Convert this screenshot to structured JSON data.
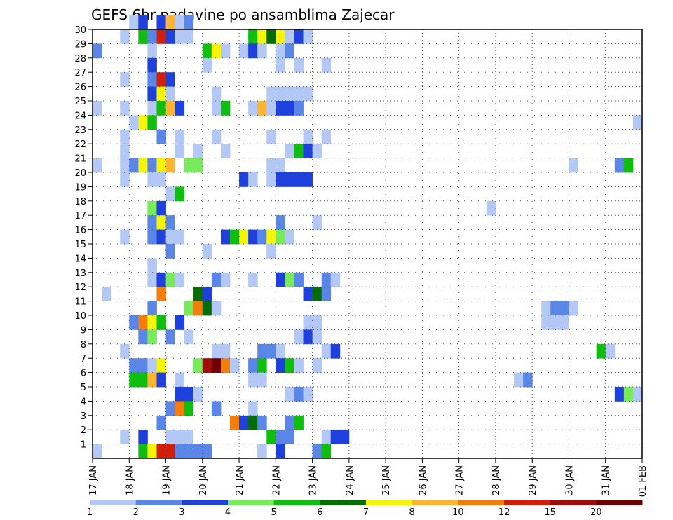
{
  "chart_data": {
    "type": "heatmap",
    "title": "GEFS 6hr padavine po ansamblima Zajecar",
    "x_tick_labels": [
      "17 JAN",
      "18 JAN",
      "19 JAN",
      "20 JAN",
      "21 JAN",
      "22 JAN",
      "23 JAN",
      "24 JAN",
      "25 JAN",
      "26 JAN",
      "27 JAN",
      "28 JAN",
      "29 JAN",
      "30 JAN",
      "31 JAN",
      "01 FEB"
    ],
    "xlim": [
      0,
      60
    ],
    "y_tick_labels": [
      "1",
      "2",
      "3",
      "4",
      "5",
      "6",
      "7",
      "8",
      "9",
      "10",
      "11",
      "12",
      "13",
      "14",
      "15",
      "16",
      "17",
      "18",
      "19",
      "20",
      "21",
      "22",
      "23",
      "24",
      "25",
      "26",
      "27",
      "28",
      "29",
      "30"
    ],
    "ylim": [
      0,
      30
    ],
    "grid": true,
    "colorbar": {
      "labels": [
        "1",
        "2",
        "3",
        "4",
        "5",
        "6",
        "7",
        "8",
        "10",
        "12",
        "15",
        "20"
      ],
      "colors": [
        "#b4c8f5",
        "#5a86e8",
        "#1e40dc",
        "#78eb5a",
        "#0fbe0f",
        "#076e07",
        "#f5f50a",
        "#ffb432",
        "#f57d0a",
        "#d21e0a",
        "#a50a0a",
        "#6e0000"
      ]
    },
    "cells": [
      [
        30,
        4,
        1
      ],
      [
        30,
        5,
        3
      ],
      [
        30,
        7,
        3
      ],
      [
        30,
        8,
        8
      ],
      [
        30,
        9,
        1
      ],
      [
        30,
        10,
        2
      ],
      [
        29,
        3,
        1
      ],
      [
        29,
        5,
        5
      ],
      [
        29,
        6,
        2
      ],
      [
        29,
        7,
        12
      ],
      [
        29,
        8,
        3
      ],
      [
        29,
        9,
        1
      ],
      [
        29,
        10,
        1
      ],
      [
        29,
        17,
        5
      ],
      [
        29,
        18,
        7
      ],
      [
        29,
        19,
        6
      ],
      [
        29,
        20,
        7
      ],
      [
        29,
        21,
        9
      ],
      [
        29,
        22,
        3
      ],
      [
        29,
        23,
        1
      ],
      [
        28,
        0,
        2
      ],
      [
        28,
        6,
        1
      ],
      [
        28,
        12,
        5
      ],
      [
        28,
        13,
        7
      ],
      [
        28,
        14,
        1
      ],
      [
        28,
        16,
        1
      ],
      [
        28,
        17,
        3
      ],
      [
        28,
        18,
        1
      ],
      [
        28,
        20,
        1
      ],
      [
        28,
        21,
        2
      ],
      [
        27,
        6,
        3
      ],
      [
        27,
        12,
        1
      ],
      [
        27,
        20,
        1
      ],
      [
        27,
        22,
        1
      ],
      [
        27,
        25,
        1
      ],
      [
        26,
        3,
        1
      ],
      [
        26,
        6,
        2
      ],
      [
        26,
        7,
        12
      ],
      [
        26,
        8,
        3
      ],
      [
        25,
        6,
        3
      ],
      [
        25,
        7,
        7
      ],
      [
        25,
        8,
        1
      ],
      [
        25,
        13,
        1
      ],
      [
        25,
        19,
        1
      ],
      [
        25,
        20,
        1
      ],
      [
        25,
        21,
        1
      ],
      [
        25,
        22,
        1
      ],
      [
        25,
        23,
        1
      ],
      [
        24,
        0,
        1
      ],
      [
        24,
        3,
        1
      ],
      [
        24,
        6,
        1
      ],
      [
        24,
        7,
        5
      ],
      [
        24,
        8,
        8
      ],
      [
        24,
        9,
        3
      ],
      [
        24,
        13,
        1
      ],
      [
        24,
        14,
        5
      ],
      [
        24,
        17,
        1
      ],
      [
        24,
        18,
        8
      ],
      [
        24,
        19,
        1
      ],
      [
        24,
        20,
        3
      ],
      [
        24,
        21,
        3
      ],
      [
        24,
        22,
        2
      ],
      [
        23,
        4,
        1
      ],
      [
        23,
        5,
        7
      ],
      [
        23,
        6,
        5
      ],
      [
        23,
        59,
        1
      ],
      [
        22,
        3,
        1
      ],
      [
        22,
        7,
        2
      ],
      [
        22,
        9,
        1
      ],
      [
        22,
        13,
        1
      ],
      [
        22,
        19,
        1
      ],
      [
        22,
        23,
        1
      ],
      [
        22,
        25,
        1
      ],
      [
        21,
        3,
        1
      ],
      [
        21,
        9,
        1
      ],
      [
        21,
        11,
        1
      ],
      [
        21,
        14,
        1
      ],
      [
        21,
        21,
        1
      ],
      [
        21,
        22,
        5
      ],
      [
        21,
        23,
        3
      ],
      [
        21,
        24,
        1
      ],
      [
        20,
        0,
        1
      ],
      [
        20,
        3,
        1
      ],
      [
        20,
        4,
        2
      ],
      [
        20,
        5,
        7
      ],
      [
        20,
        6,
        2
      ],
      [
        20,
        7,
        7
      ],
      [
        20,
        8,
        8
      ],
      [
        20,
        10,
        4
      ],
      [
        20,
        11,
        4
      ],
      [
        20,
        19,
        1
      ],
      [
        20,
        20,
        1
      ],
      [
        20,
        52,
        1
      ],
      [
        20,
        57,
        2
      ],
      [
        20,
        58,
        5
      ],
      [
        19,
        3,
        1
      ],
      [
        19,
        6,
        1
      ],
      [
        19,
        7,
        1
      ],
      [
        19,
        16,
        3
      ],
      [
        19,
        17,
        1
      ],
      [
        19,
        19,
        1
      ],
      [
        19,
        20,
        3
      ],
      [
        19,
        21,
        3
      ],
      [
        19,
        22,
        3
      ],
      [
        19,
        23,
        3
      ],
      [
        18,
        8,
        1
      ],
      [
        18,
        9,
        5
      ],
      [
        17,
        6,
        4
      ],
      [
        17,
        7,
        3
      ],
      [
        17,
        43,
        1
      ],
      [
        16,
        6,
        2
      ],
      [
        16,
        7,
        7
      ],
      [
        16,
        8,
        2
      ],
      [
        16,
        20,
        2
      ],
      [
        16,
        24,
        1
      ],
      [
        15,
        3,
        1
      ],
      [
        15,
        6,
        2
      ],
      [
        15,
        7,
        3
      ],
      [
        15,
        8,
        1
      ],
      [
        15,
        9,
        1
      ],
      [
        15,
        14,
        3
      ],
      [
        15,
        15,
        5
      ],
      [
        15,
        16,
        7
      ],
      [
        15,
        17,
        3
      ],
      [
        15,
        18,
        2
      ],
      [
        15,
        19,
        7
      ],
      [
        15,
        20,
        4
      ],
      [
        15,
        21,
        1
      ],
      [
        14,
        8,
        2
      ],
      [
        14,
        12,
        1
      ],
      [
        14,
        19,
        1
      ],
      [
        13,
        6,
        1
      ],
      [
        12,
        6,
        1
      ],
      [
        12,
        7,
        3
      ],
      [
        12,
        8,
        4
      ],
      [
        12,
        9,
        1
      ],
      [
        12,
        13,
        2
      ],
      [
        12,
        14,
        1
      ],
      [
        12,
        17,
        1
      ],
      [
        12,
        20,
        3
      ],
      [
        12,
        21,
        4
      ],
      [
        12,
        22,
        2
      ],
      [
        12,
        25,
        2
      ],
      [
        12,
        26,
        1
      ],
      [
        11,
        1,
        1
      ],
      [
        11,
        7,
        10
      ],
      [
        11,
        11,
        6
      ],
      [
        11,
        12,
        3
      ],
      [
        11,
        23,
        3
      ],
      [
        11,
        24,
        6
      ],
      [
        11,
        25,
        2
      ],
      [
        10,
        6,
        2
      ],
      [
        10,
        10,
        4
      ],
      [
        10,
        11,
        10
      ],
      [
        10,
        12,
        6
      ],
      [
        10,
        13,
        1
      ],
      [
        10,
        49,
        1
      ],
      [
        10,
        50,
        2
      ],
      [
        10,
        51,
        2
      ],
      [
        10,
        52,
        1
      ],
      [
        9,
        4,
        2
      ],
      [
        9,
        5,
        10
      ],
      [
        9,
        6,
        7
      ],
      [
        9,
        7,
        5
      ],
      [
        9,
        9,
        3
      ],
      [
        9,
        23,
        1
      ],
      [
        9,
        24,
        1
      ],
      [
        9,
        49,
        1
      ],
      [
        9,
        50,
        1
      ],
      [
        9,
        51,
        1
      ],
      [
        8,
        5,
        2
      ],
      [
        8,
        6,
        4
      ],
      [
        8,
        8,
        2
      ],
      [
        8,
        10,
        1
      ],
      [
        8,
        22,
        1
      ],
      [
        8,
        23,
        3
      ],
      [
        8,
        24,
        1
      ],
      [
        7,
        3,
        1
      ],
      [
        7,
        13,
        1
      ],
      [
        7,
        14,
        1
      ],
      [
        7,
        18,
        2
      ],
      [
        7,
        19,
        2
      ],
      [
        7,
        20,
        1
      ],
      [
        7,
        25,
        1
      ],
      [
        7,
        26,
        3
      ],
      [
        7,
        55,
        5
      ],
      [
        7,
        56,
        1
      ],
      [
        6,
        4,
        2
      ],
      [
        6,
        5,
        2
      ],
      [
        6,
        6,
        1
      ],
      [
        6,
        7,
        7
      ],
      [
        6,
        11,
        4
      ],
      [
        6,
        12,
        15
      ],
      [
        6,
        13,
        20
      ],
      [
        6,
        14,
        10
      ],
      [
        6,
        15,
        1
      ],
      [
        6,
        17,
        2
      ],
      [
        6,
        18,
        5
      ],
      [
        6,
        20,
        3
      ],
      [
        6,
        21,
        5
      ],
      [
        6,
        22,
        1
      ],
      [
        6,
        24,
        1
      ],
      [
        5,
        4,
        5
      ],
      [
        5,
        5,
        5
      ],
      [
        5,
        6,
        8
      ],
      [
        5,
        7,
        3
      ],
      [
        5,
        9,
        1
      ],
      [
        5,
        17,
        1
      ],
      [
        5,
        18,
        1
      ],
      [
        5,
        46,
        1
      ],
      [
        5,
        47,
        2
      ],
      [
        4,
        9,
        3
      ],
      [
        4,
        10,
        3
      ],
      [
        4,
        11,
        1
      ],
      [
        4,
        21,
        1
      ],
      [
        4,
        22,
        2
      ],
      [
        4,
        23,
        1
      ],
      [
        4,
        57,
        3
      ],
      [
        4,
        58,
        4
      ],
      [
        4,
        59,
        1
      ],
      [
        3,
        8,
        2
      ],
      [
        3,
        9,
        10
      ],
      [
        3,
        10,
        5
      ],
      [
        3,
        13,
        2
      ],
      [
        3,
        17,
        1
      ],
      [
        2,
        7,
        2
      ],
      [
        2,
        15,
        10
      ],
      [
        2,
        16,
        3
      ],
      [
        2,
        17,
        6
      ],
      [
        2,
        18,
        2
      ],
      [
        2,
        21,
        2
      ],
      [
        2,
        22,
        5
      ],
      [
        1,
        3,
        1
      ],
      [
        1,
        5,
        3
      ],
      [
        1,
        8,
        1
      ],
      [
        1,
        9,
        1
      ],
      [
        1,
        10,
        1
      ],
      [
        1,
        19,
        5
      ],
      [
        1,
        20,
        2
      ],
      [
        1,
        21,
        2
      ],
      [
        1,
        25,
        1
      ],
      [
        1,
        26,
        3
      ],
      [
        1,
        27,
        3
      ],
      [
        0,
        0,
        1
      ],
      [
        0,
        5,
        5
      ],
      [
        0,
        6,
        7
      ],
      [
        0,
        7,
        12
      ],
      [
        0,
        8,
        12
      ],
      [
        0,
        9,
        2
      ],
      [
        0,
        10,
        2
      ],
      [
        0,
        11,
        2
      ],
      [
        0,
        12,
        2
      ],
      [
        0,
        18,
        1
      ],
      [
        0,
        20,
        3
      ],
      [
        0,
        24,
        2
      ],
      [
        0,
        25,
        5
      ]
    ]
  }
}
